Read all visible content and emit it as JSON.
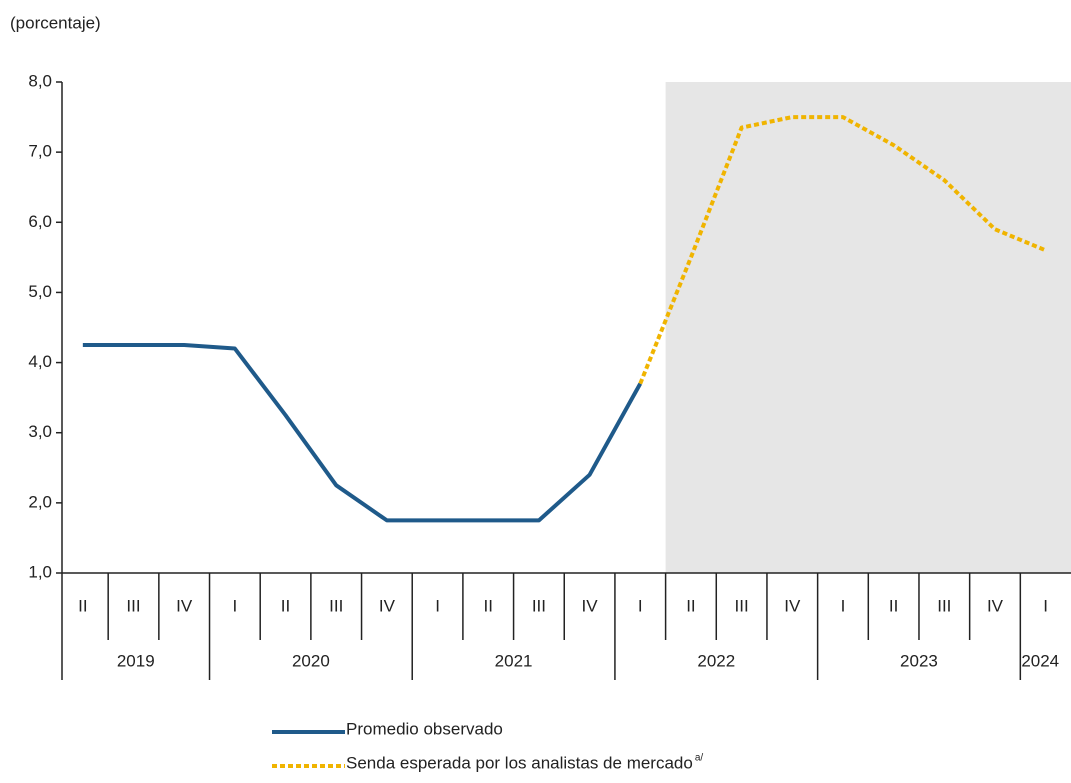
{
  "chart_data": {
    "type": "line",
    "subtitle": "(porcentaje)",
    "categories": [
      "II",
      "III",
      "IV",
      "I",
      "II",
      "III",
      "IV",
      "I",
      "II",
      "III",
      "IV",
      "I",
      "II",
      "III",
      "IV",
      "I",
      "II",
      "III",
      "IV",
      "I"
    ],
    "years": [
      "2019",
      "2020",
      "2021",
      "2022",
      "2023",
      "2024"
    ],
    "series": [
      {
        "name": "Promedio observado",
        "color": "#1f5a8a",
        "style": "solid",
        "values": [
          4.25,
          4.25,
          4.25,
          4.2,
          3.25,
          2.25,
          1.75,
          1.75,
          1.75,
          1.75,
          2.4,
          3.7,
          null,
          null,
          null,
          null,
          null,
          null,
          null,
          null
        ]
      },
      {
        "name": "Senda esperada por los analistas de mercado",
        "note": "a/",
        "color": "#f0b400",
        "style": "dotted",
        "values": [
          null,
          null,
          null,
          null,
          null,
          null,
          null,
          null,
          null,
          null,
          null,
          3.7,
          5.5,
          7.35,
          7.5,
          7.5,
          7.1,
          6.6,
          5.9,
          5.6
        ]
      }
    ],
    "ylim": [
      1,
      8
    ],
    "yticks": [
      {
        "value": 1,
        "label": "1,0"
      },
      {
        "value": 2,
        "label": "2,0"
      },
      {
        "value": 3,
        "label": "3,0"
      },
      {
        "value": 4,
        "label": "4,0"
      },
      {
        "value": 5,
        "label": "5,0"
      },
      {
        "value": 6,
        "label": "6,0"
      },
      {
        "value": 7,
        "label": "7,0"
      },
      {
        "value": 8,
        "label": "8,0"
      }
    ],
    "grid": false
  }
}
